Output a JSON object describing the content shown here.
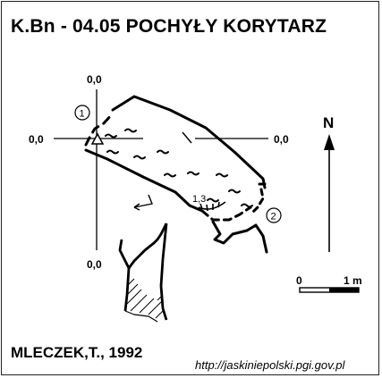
{
  "title": "K.Bn - 04.05  POCHYŁY KORYTARZ",
  "author": "MLECZEK,T., 1992",
  "source_url": "http://jaskiniepolski.pgi.gov.pl",
  "section_labels": {
    "top": "0,0",
    "left": "0,0",
    "right": "0,0",
    "bottom": "0,0"
  },
  "station_1": "1",
  "station_2": "2",
  "depth_mark": "1,3",
  "north_label": "N",
  "scale": {
    "start": "0",
    "end": "1 m"
  }
}
